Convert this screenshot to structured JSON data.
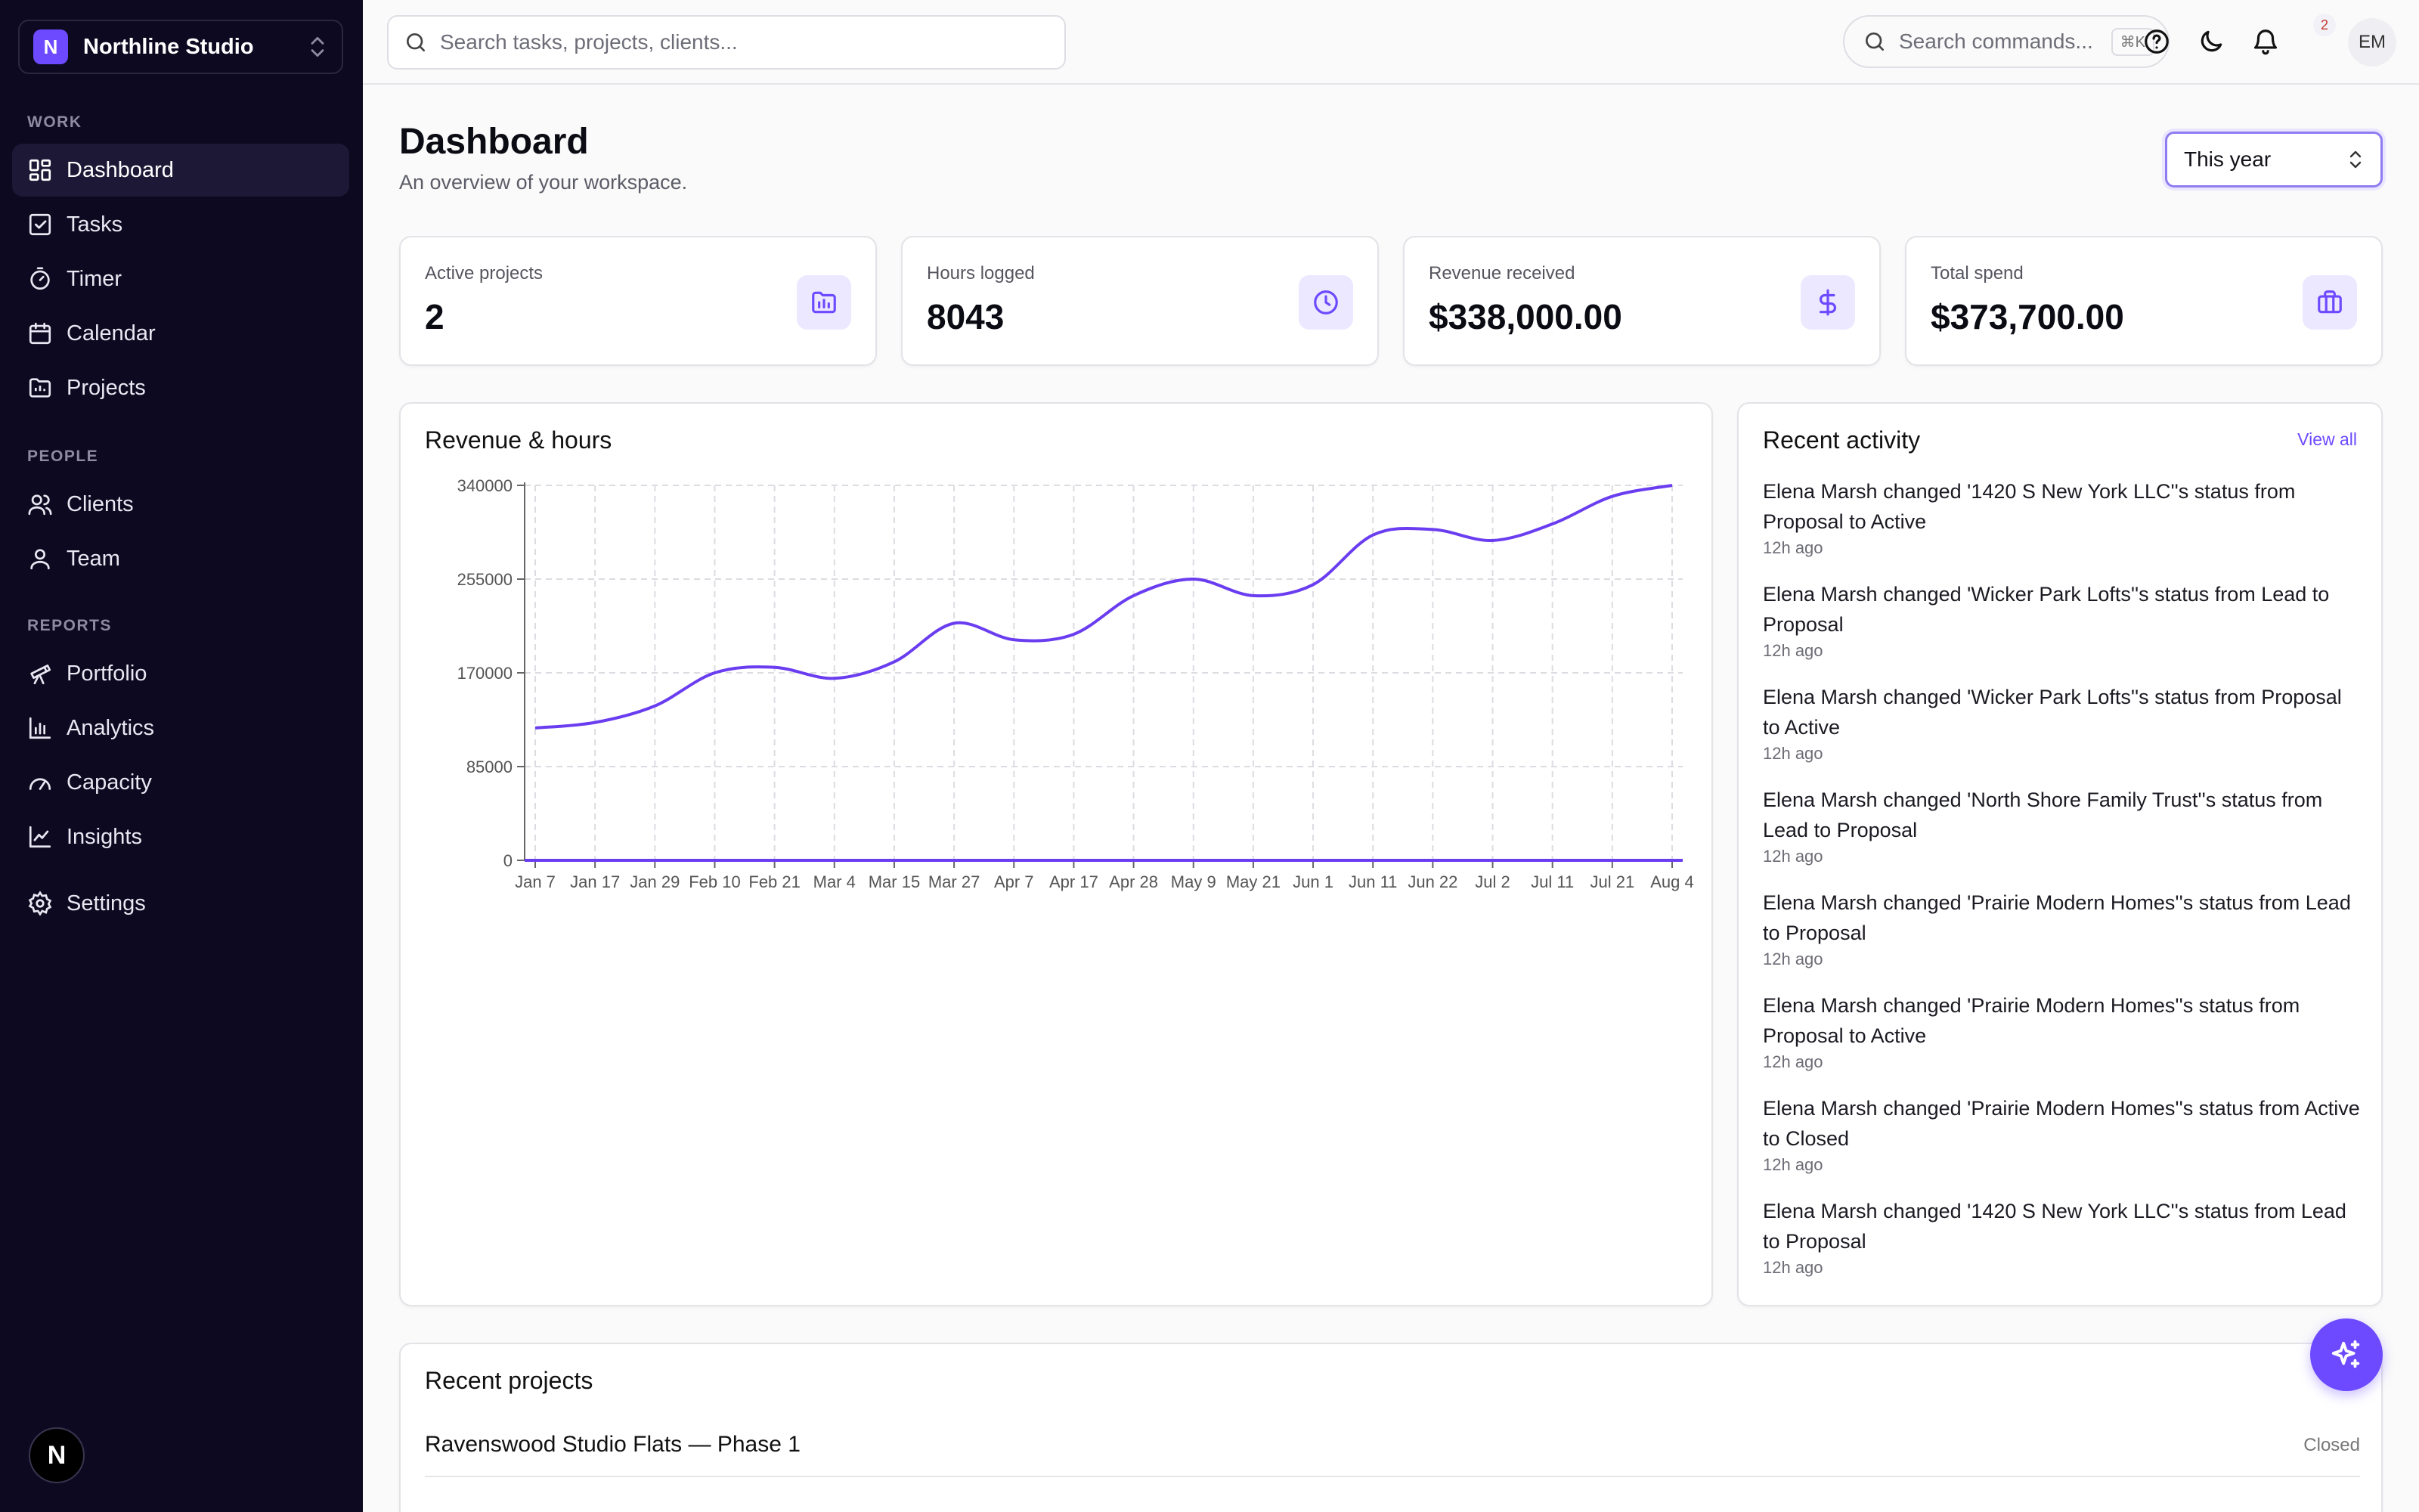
{
  "workspace": {
    "logo_letter": "N",
    "name": "Northline Studio"
  },
  "sidebar": {
    "sections": [
      {
        "label": "WORK",
        "items": [
          "Dashboard",
          "Tasks",
          "Timer",
          "Calendar",
          "Projects"
        ]
      },
      {
        "label": "PEOPLE",
        "items": [
          "Clients",
          "Team"
        ]
      },
      {
        "label": "REPORTS",
        "items": [
          "Portfolio",
          "Analytics",
          "Capacity",
          "Insights"
        ]
      }
    ],
    "settings": "Settings",
    "active": "Dashboard",
    "bottom_badge": "N"
  },
  "topbar": {
    "search_placeholder": "Search tasks, projects, clients...",
    "command_placeholder": "Search commands...",
    "command_shortcut": "⌘K",
    "notification_count": "2",
    "user_initials": "EM"
  },
  "header": {
    "title": "Dashboard",
    "subtitle": "An overview of your workspace.",
    "range": "This year"
  },
  "stats": [
    {
      "label": "Active projects",
      "value": "2",
      "icon": "folder-chart-icon"
    },
    {
      "label": "Hours logged",
      "value": "8043",
      "icon": "clock-icon"
    },
    {
      "label": "Revenue received",
      "value": "$338,000.00",
      "icon": "dollar-icon"
    },
    {
      "label": "Total spend",
      "value": "$373,700.00",
      "icon": "briefcase-icon"
    }
  ],
  "chart_card_title": "Revenue & hours",
  "chart_data": {
    "type": "line",
    "title": "",
    "x": [
      "Jan 7",
      "Jan 17",
      "Jan 29",
      "Feb 10",
      "Feb 21",
      "Mar 4",
      "Mar 15",
      "Mar 27",
      "Apr 7",
      "Apr 17",
      "Apr 28",
      "May 9",
      "May 21",
      "Jun 1",
      "Jun 11",
      "Jun 22",
      "Jul 2",
      "Jul 11",
      "Jul 21",
      "Aug 4"
    ],
    "series": [
      {
        "values": [
          120000,
          125000,
          140000,
          170000,
          175000,
          165000,
          180000,
          215000,
          200000,
          205000,
          240000,
          255000,
          240000,
          250000,
          295000,
          300000,
          290000,
          305000,
          330000,
          340000
        ]
      }
    ],
    "yticks": [
      0,
      85000,
      170000,
      255000,
      340000
    ],
    "ylim": [
      0,
      340000
    ],
    "xlabel": "",
    "ylabel": "",
    "grid": true,
    "color": "#6a3df0"
  },
  "activity": {
    "title": "Recent activity",
    "view_all": "View all",
    "items": [
      {
        "text": "Elena Marsh changed '1420 S New York LLC''s status from Proposal to Active",
        "time": "12h ago"
      },
      {
        "text": "Elena Marsh changed 'Wicker Park Lofts''s status from Lead to Proposal",
        "time": "12h ago"
      },
      {
        "text": "Elena Marsh changed 'Wicker Park Lofts''s status from Proposal to Active",
        "time": "12h ago"
      },
      {
        "text": "Elena Marsh changed 'North Shore Family Trust''s status from Lead to Proposal",
        "time": "12h ago"
      },
      {
        "text": "Elena Marsh changed 'Prairie Modern Homes''s status from Lead to Proposal",
        "time": "12h ago"
      },
      {
        "text": "Elena Marsh changed 'Prairie Modern Homes''s status from Proposal to Active",
        "time": "12h ago"
      },
      {
        "text": "Elena Marsh changed 'Prairie Modern Homes''s status from Active to Closed",
        "time": "12h ago"
      },
      {
        "text": "Elena Marsh changed '1420 S New York LLC''s status from Lead to Proposal",
        "time": "12h ago"
      }
    ]
  },
  "projects": {
    "title": "Recent projects",
    "rows": [
      {
        "name": "Ravenswood Studio Flats — Phase 1",
        "status": "Closed"
      }
    ]
  },
  "colors": {
    "accent": "#6d4aff",
    "sidebar_bg": "#0d0920"
  }
}
